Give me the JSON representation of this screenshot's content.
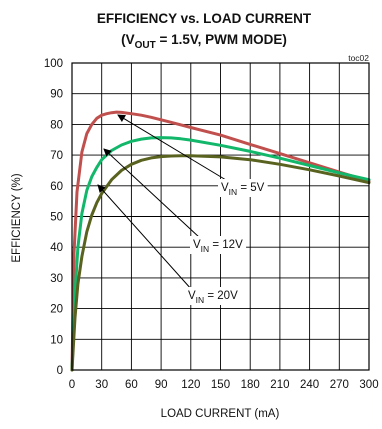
{
  "chart_data": {
    "type": "line",
    "title_line1": "EFFICIENCY vs. LOAD CURRENT",
    "title_line2": {
      "pre": "(V",
      "sub": "OUT",
      "post": " = 1.5V, PWM MODE)"
    },
    "tag": "toc02",
    "xlabel": "LOAD CURRENT  (mA)",
    "ylabel": "EFFICIENCY (%)",
    "xlim": [
      0,
      300
    ],
    "ylim": [
      0,
      100
    ],
    "xticks": [
      0,
      30,
      60,
      90,
      120,
      150,
      180,
      210,
      240,
      270,
      300
    ],
    "yticks": [
      0,
      10,
      20,
      30,
      40,
      50,
      60,
      70,
      80,
      90,
      100
    ],
    "grid": true,
    "series": [
      {
        "label": {
          "pre": "V",
          "sub": "IN",
          "post": " = 5V"
        },
        "color": "#c0504d",
        "x": [
          0,
          2,
          5,
          10,
          15,
          20,
          25,
          30,
          35,
          40,
          45,
          50,
          60,
          70,
          80,
          90,
          100,
          120,
          150,
          180,
          210,
          240,
          270,
          300
        ],
        "y": [
          0,
          38,
          58,
          71,
          77,
          80,
          82,
          83,
          83.5,
          83.8,
          84,
          83.9,
          83.5,
          83,
          82.3,
          81.5,
          80.7,
          79,
          76.5,
          73.5,
          70.5,
          67.5,
          64.5,
          61.5
        ]
      },
      {
        "label": {
          "pre": "V",
          "sub": "IN",
          "post": " = 12V"
        },
        "color": "#12b76a",
        "x": [
          0,
          3,
          6,
          10,
          15,
          20,
          25,
          30,
          40,
          50,
          60,
          70,
          80,
          90,
          100,
          110,
          120,
          150,
          180,
          210,
          240,
          270,
          300
        ],
        "y": [
          0,
          25,
          40,
          51,
          58.5,
          63,
          66,
          68.5,
          71.5,
          73.3,
          74.5,
          75.2,
          75.6,
          75.7,
          75.6,
          75.3,
          74.9,
          73.2,
          71.2,
          69,
          66.6,
          64.2,
          62
        ]
      },
      {
        "label": {
          "pre": "V",
          "sub": "IN",
          "post": " = 20V"
        },
        "color": "#5a6220",
        "x": [
          0,
          3,
          6,
          10,
          15,
          20,
          25,
          30,
          40,
          50,
          60,
          70,
          80,
          90,
          100,
          110,
          120,
          150,
          180,
          210,
          240,
          270,
          300
        ],
        "y": [
          0,
          17,
          28,
          37,
          45,
          50.5,
          54.5,
          57.5,
          62,
          65,
          67,
          68.3,
          69.1,
          69.5,
          69.7,
          69.8,
          69.8,
          69.4,
          68.5,
          67,
          65.2,
          63.2,
          61
        ]
      }
    ]
  }
}
